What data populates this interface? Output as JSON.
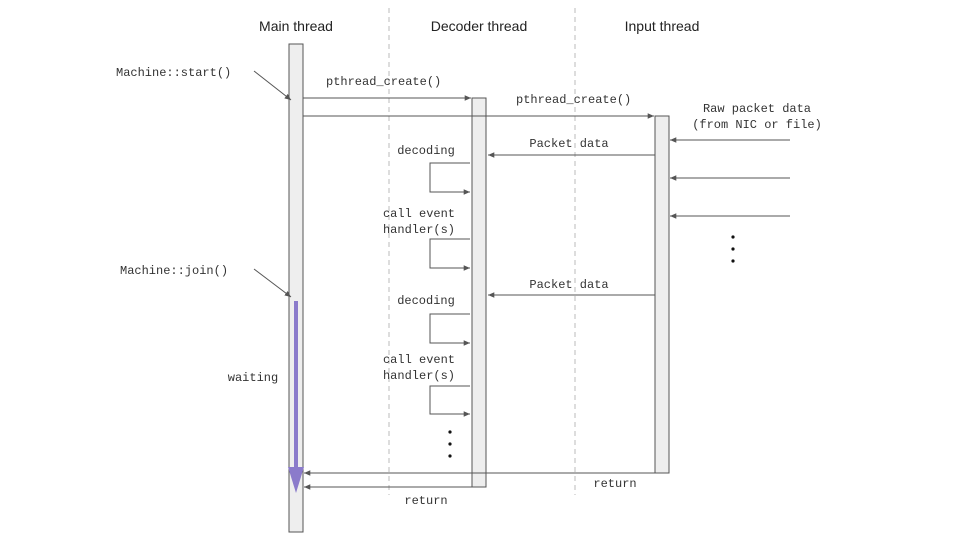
{
  "headers": {
    "main": "Main thread",
    "decoder": "Decoder thread",
    "input": "Input thread"
  },
  "labels": {
    "machine_start": "Machine::start()",
    "machine_join": "Machine::join()",
    "pthread_create_1": "pthread_create()",
    "pthread_create_2": "pthread_create()",
    "raw_packet_line1": "Raw packet data",
    "raw_packet_line2": "(from NIC or file)",
    "packet_data_1": "Packet data",
    "packet_data_2": "Packet data",
    "decoding_1": "decoding",
    "decoding_2": "decoding",
    "call_event_1_line1": "call event",
    "call_event_1_line2": "handler(s)",
    "call_event_2_line1": "call event",
    "call_event_2_line2": "handler(s)",
    "waiting": "waiting",
    "return_input": "return",
    "return_decoder": "return"
  },
  "colors": {
    "waiting_arrow": "#8B7BCB",
    "activation_fill": "#eeeeee",
    "line": "#555555",
    "divider": "#bbbbbb"
  }
}
